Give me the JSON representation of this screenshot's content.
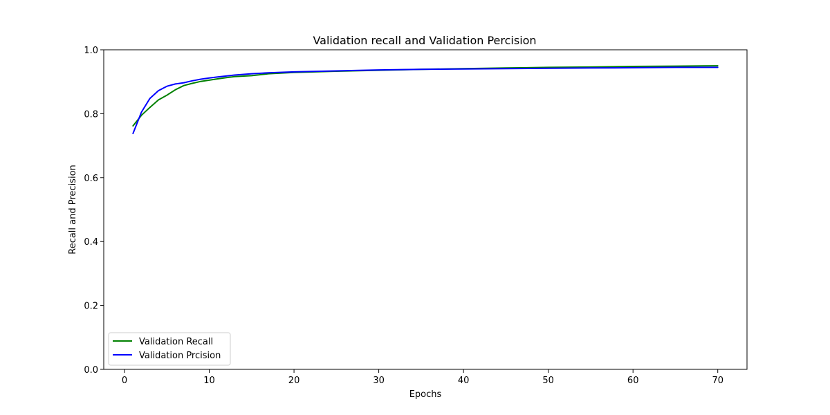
{
  "chart_data": {
    "type": "line",
    "title": "Validation recall and Validation Percision",
    "xlabel": "Epochs",
    "ylabel": "Recall and Precision",
    "xlim": [
      -2.45,
      73.45
    ],
    "ylim": [
      0.0,
      1.0
    ],
    "xticks": [
      0,
      10,
      20,
      30,
      40,
      50,
      60,
      70
    ],
    "yticks": [
      0.0,
      0.2,
      0.4,
      0.6,
      0.8,
      1.0
    ],
    "grid": false,
    "legend_position": "lower-left",
    "series": [
      {
        "name": "Validation Recall",
        "color": "#008000",
        "x": [
          1,
          2,
          3,
          4,
          5,
          6,
          7,
          8,
          9,
          10,
          11,
          12,
          13,
          15,
          17,
          20,
          25,
          30,
          35,
          40,
          45,
          50,
          55,
          60,
          65,
          70
        ],
        "y": [
          0.762,
          0.795,
          0.82,
          0.843,
          0.858,
          0.875,
          0.888,
          0.895,
          0.901,
          0.905,
          0.909,
          0.913,
          0.916,
          0.919,
          0.925,
          0.929,
          0.933,
          0.936,
          0.939,
          0.941,
          0.943,
          0.945,
          0.946,
          0.948,
          0.949,
          0.95
        ]
      },
      {
        "name": "Validation Prcision",
        "color": "#0000ff",
        "x": [
          1,
          2,
          3,
          4,
          5,
          6,
          7,
          8,
          9,
          10,
          11,
          12,
          13,
          15,
          17,
          20,
          25,
          30,
          35,
          40,
          45,
          50,
          55,
          60,
          65,
          70
        ],
        "y": [
          0.738,
          0.805,
          0.848,
          0.872,
          0.886,
          0.893,
          0.897,
          0.903,
          0.908,
          0.912,
          0.915,
          0.918,
          0.921,
          0.925,
          0.928,
          0.931,
          0.934,
          0.937,
          0.939,
          0.94,
          0.941,
          0.942,
          0.943,
          0.944,
          0.945,
          0.945
        ]
      }
    ]
  }
}
